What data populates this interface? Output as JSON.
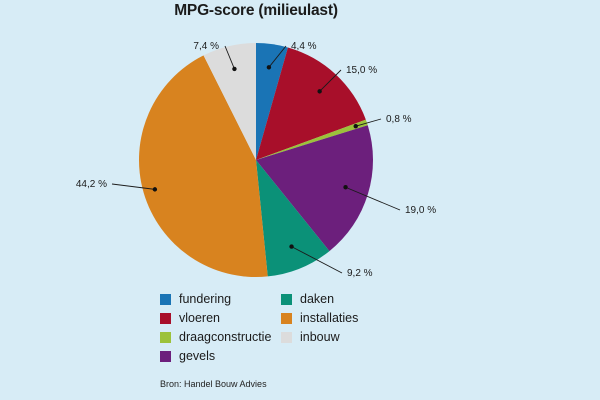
{
  "chart_data": {
    "type": "pie",
    "title": "MPG-score (milieulast)",
    "slices": [
      {
        "name": "fundering",
        "value": 4.4,
        "label": "4,4 %",
        "color": "#1a74b5"
      },
      {
        "name": "vloeren",
        "value": 15.0,
        "label": "15,0 %",
        "color": "#a80f2a"
      },
      {
        "name": "draagconstructie",
        "value": 0.8,
        "label": "0,8 %",
        "color": "#9cc23a"
      },
      {
        "name": "gevels",
        "value": 19.0,
        "label": "19,0 %",
        "color": "#6c1f7c"
      },
      {
        "name": "daken",
        "value": 9.2,
        "label": "9,2 %",
        "color": "#0b9178"
      },
      {
        "name": "installaties",
        "value": 44.2,
        "label": "44,2 %",
        "color": "#d8831f"
      },
      {
        "name": "inbouw",
        "value": 7.4,
        "label": "7,4 %",
        "color": "#dcdcdc"
      }
    ],
    "legend": {
      "placement": "bottom",
      "items": [
        {
          "label": "fundering",
          "color": "#1a74b5"
        },
        {
          "label": "daken",
          "color": "#0b9178"
        },
        {
          "label": "vloeren",
          "color": "#a80f2a"
        },
        {
          "label": "installaties",
          "color": "#d8831f"
        },
        {
          "label": "draagconstructie",
          "color": "#9cc23a"
        },
        {
          "label": "inbouw",
          "color": "#dcdcdc"
        },
        {
          "label": "gevels",
          "color": "#6c1f7c"
        }
      ]
    },
    "source": "Bron: Handel Bouw Advies"
  }
}
